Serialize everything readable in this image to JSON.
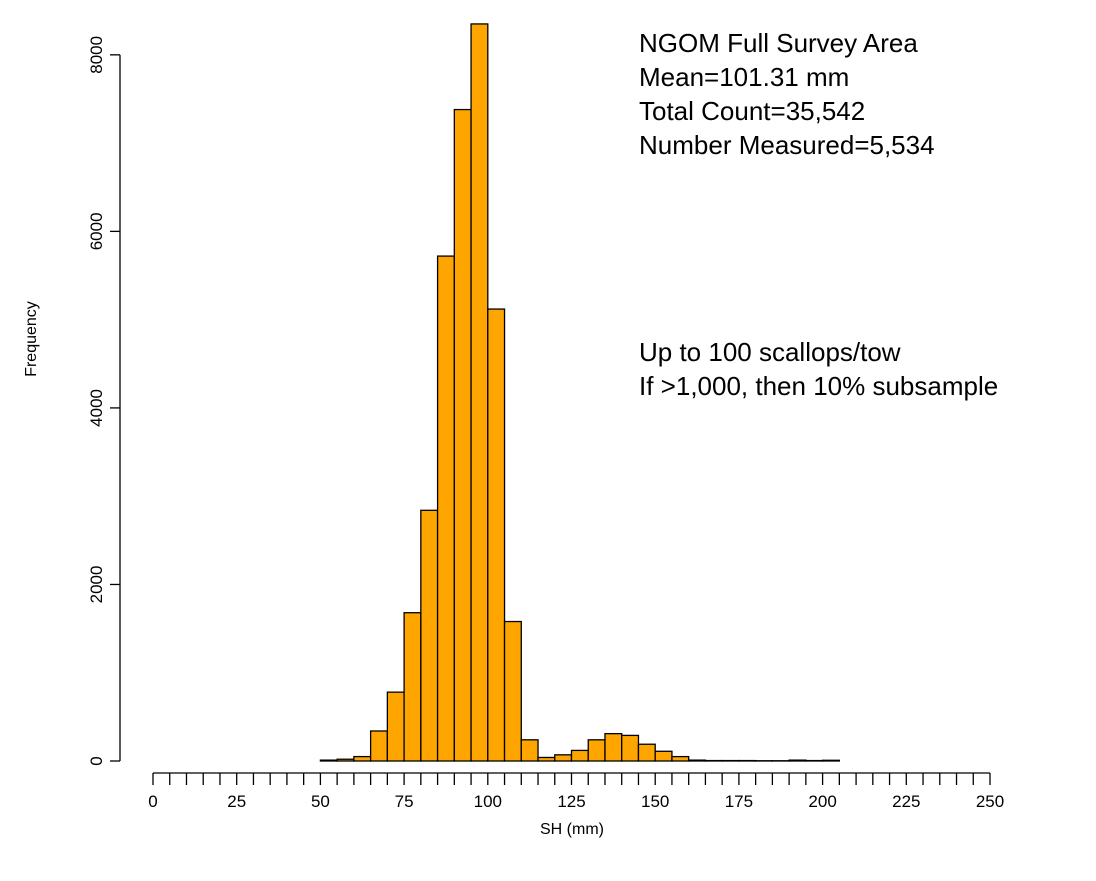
{
  "chart_data": {
    "type": "bar",
    "xlabel": "SH (mm)",
    "ylabel": "Frequency",
    "bin_width": 5,
    "xlim": [
      0,
      250
    ],
    "ylim": [
      0,
      8500
    ],
    "x_ticks": [
      "0",
      "25",
      "50",
      "75",
      "100",
      "125",
      "150",
      "175",
      "200",
      "225",
      "250"
    ],
    "y_ticks": [
      "0",
      "2000",
      "4000",
      "6000",
      "8000"
    ],
    "bar_color": "#FFA500",
    "grid": false,
    "annotations": [
      [
        "NGOM Full Survey Area",
        "Mean=101.31 mm",
        "Total Count=35,542",
        "Number Measured=5,534"
      ],
      [
        "Up to 100 scallops/tow",
        "If >1,000, then 10% subsample"
      ]
    ],
    "bins": [
      {
        "x0": 50,
        "x1": 55,
        "value": 10
      },
      {
        "x0": 55,
        "x1": 60,
        "value": 20
      },
      {
        "x0": 60,
        "x1": 65,
        "value": 50
      },
      {
        "x0": 65,
        "x1": 70,
        "value": 340
      },
      {
        "x0": 70,
        "x1": 75,
        "value": 780
      },
      {
        "x0": 75,
        "x1": 80,
        "value": 1680
      },
      {
        "x0": 80,
        "x1": 85,
        "value": 2840
      },
      {
        "x0": 85,
        "x1": 90,
        "value": 5720
      },
      {
        "x0": 90,
        "x1": 95,
        "value": 7380
      },
      {
        "x0": 95,
        "x1": 100,
        "value": 8350
      },
      {
        "x0": 100,
        "x1": 105,
        "value": 5120
      },
      {
        "x0": 105,
        "x1": 110,
        "value": 1580
      },
      {
        "x0": 110,
        "x1": 115,
        "value": 240
      },
      {
        "x0": 115,
        "x1": 120,
        "value": 40
      },
      {
        "x0": 120,
        "x1": 125,
        "value": 70
      },
      {
        "x0": 125,
        "x1": 130,
        "value": 120
      },
      {
        "x0": 130,
        "x1": 135,
        "value": 240
      },
      {
        "x0": 135,
        "x1": 140,
        "value": 310
      },
      {
        "x0": 140,
        "x1": 145,
        "value": 290
      },
      {
        "x0": 145,
        "x1": 150,
        "value": 190
      },
      {
        "x0": 150,
        "x1": 155,
        "value": 110
      },
      {
        "x0": 155,
        "x1": 160,
        "value": 50
      },
      {
        "x0": 160,
        "x1": 165,
        "value": 10
      },
      {
        "x0": 165,
        "x1": 170,
        "value": 5
      },
      {
        "x0": 170,
        "x1": 175,
        "value": 5
      },
      {
        "x0": 175,
        "x1": 180,
        "value": 5
      },
      {
        "x0": 180,
        "x1": 185,
        "value": 3
      },
      {
        "x0": 185,
        "x1": 190,
        "value": 3
      },
      {
        "x0": 190,
        "x1": 195,
        "value": 10
      },
      {
        "x0": 195,
        "x1": 200,
        "value": 5
      },
      {
        "x0": 200,
        "x1": 205,
        "value": 8
      }
    ]
  }
}
